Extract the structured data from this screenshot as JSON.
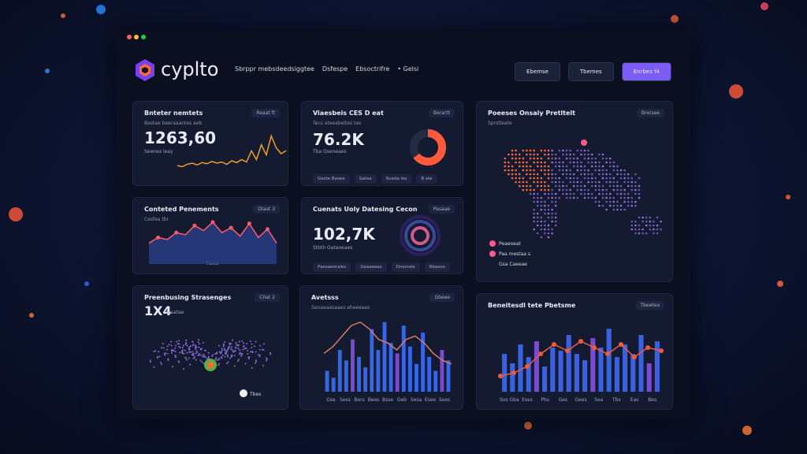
{
  "header": {
    "logo": "cyplto",
    "nav": [
      "Sbrppr mebsdeedsiggtee",
      "Dsfespe",
      "Ebsoctrifre",
      "• Gelsi"
    ],
    "buttons": [
      "Ebemse",
      "Tbemes",
      "Enrbes f4"
    ]
  },
  "cards": [
    {
      "title": "Bnteter nemtets",
      "tag": "Reaat ft",
      "subtitle": "Bestae beeraaantes aeb",
      "value": "1263,60",
      "caption": "Sewrea leay",
      "line": {
        "color": "#f0a020",
        "ylim": [
          0,
          80
        ],
        "values": [
          20,
          18,
          22,
          24,
          21,
          25,
          23,
          27,
          24,
          26,
          22,
          28,
          25,
          30,
          26,
          45,
          30,
          55,
          38,
          70,
          50,
          40,
          45
        ]
      }
    },
    {
      "title": "Viaesbeis CES D eat",
      "tag": "Berartt",
      "subtitle": "Tecs ateeabeites tes",
      "value": "76.2K",
      "caption": "Tba Oseneaes",
      "chips": [
        "Geste Besea",
        "Gatsa",
        "Sueda les",
        "B ste"
      ],
      "donut": {
        "values": [
          65,
          35
        ],
        "colors": [
          "#ff5a3c",
          "#262b45"
        ]
      }
    },
    {
      "title": "Poeeses Onsaiy Pretltelt",
      "tag": "Brersee",
      "subtitle": "Sprstleate",
      "legend": [
        "Peaeoeat",
        "Paa mestaa s",
        "Gsa Caeeae"
      ]
    },
    {
      "title": "Conteted Penements",
      "tag": "Dlaat 3",
      "subtitle": "Cesfea tbr",
      "caption": "Tiaea",
      "area": {
        "color": "#ff5a6a",
        "ylim": [
          0,
          70
        ],
        "values": [
          30,
          38,
          35,
          45,
          42,
          55,
          48,
          60,
          45,
          52,
          40,
          58,
          38,
          50,
          30
        ]
      }
    },
    {
      "title": "Cuenats Uoly Datesing Cecon",
      "tag": "Pasaae",
      "subtitle": "",
      "value": "102,7K",
      "caption": "Stbth Oataoeaes",
      "chips": [
        "Paesaeorales",
        "Geaaeaas",
        "Dnesrals",
        "Rbaese"
      ]
    },
    {
      "title": "Preenbusing Strasenges",
      "tag": "Chat 2",
      "value": "1X4",
      "caption": "Besatae",
      "note": "Tbes"
    },
    {
      "title": "Avetsss",
      "tag": "Gbeee",
      "subtitle": "Senaeaesaaes eheeeaes",
      "bars": {
        "bar_color": "#3566e8",
        "line_color": "#d87a6a",
        "ylim": [
          0,
          120
        ],
        "values": [
          30,
          20,
          60,
          45,
          75,
          50,
          35,
          90,
          60,
          100,
          70,
          55,
          95,
          65,
          40,
          85,
          50,
          30,
          60,
          45
        ],
        "line": [
          55,
          65,
          80,
          95,
          100,
          90,
          75,
          70,
          60,
          75,
          80,
          70,
          55,
          45,
          40
        ],
        "xlabels": [
          "Gse",
          "Sess",
          "Bers",
          "Bees",
          "Bsse",
          "Geb",
          "Sesa",
          "Esee",
          "Sees"
        ]
      }
    },
    {
      "title": "Beneitesdl tete Pbetsme",
      "tag": "Tbeetea",
      "bars": {
        "bar_color": "#3a62e0",
        "line_color": "#f05a3a",
        "ylim": [
          0,
          120
        ],
        "values": [
          60,
          45,
          75,
          55,
          80,
          40,
          70,
          65,
          90,
          60,
          50,
          85,
          70,
          100,
          55,
          75,
          60,
          90,
          45,
          80
        ],
        "line": [
          25,
          30,
          40,
          60,
          75,
          65,
          80,
          70,
          60,
          75,
          55,
          70,
          65
        ],
        "xlabels": [
          "Sos Gba",
          "Eses",
          "Pbs",
          "Ges",
          "Gees",
          "Sea",
          "Tbs",
          "Eas",
          "Bes"
        ]
      }
    }
  ]
}
